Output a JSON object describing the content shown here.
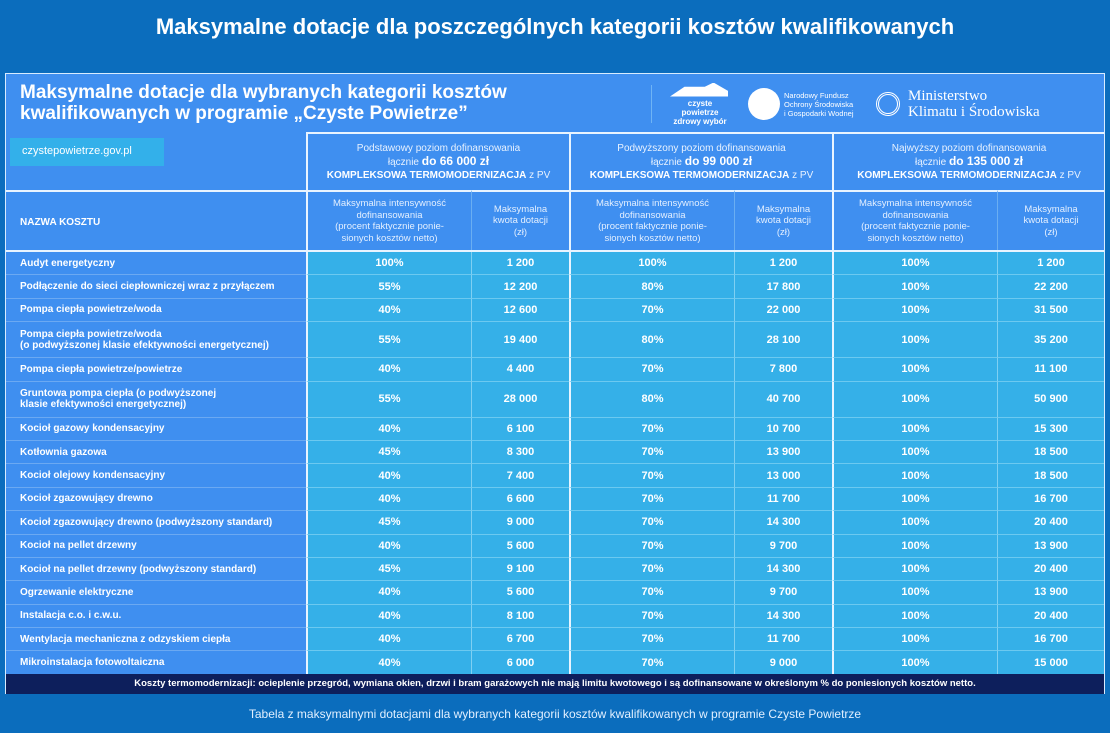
{
  "page_title": "Maksymalne dotacje dla poszczególnych kategorii kosztów kwalifikowanych",
  "card": {
    "title_line1": "Maksymalne dotacje dla wybranych kategorii kosztów",
    "title_line2": "kwalifikowanych w programie „Czyste Powietrze”",
    "website": "czystepowietrze.gov.pl",
    "logos": {
      "cp_line1": "czyste powietrze",
      "cp_line2": "zdrowy wybór",
      "nfos": [
        "Narodowy Fundusz",
        "Ochrony Środowiska",
        "i Gospodarki Wodnej"
      ],
      "ministry_line1": "Ministerstwo",
      "ministry_line2": "Klimatu i Środowiska"
    }
  },
  "groups": [
    {
      "level": "Podstawowy poziom dofinansowania",
      "prefix": "łącznie",
      "amount": "do  66 000 zł",
      "scope": "KOMPLEKSOWA TERMOMODERNIZACJA",
      "suffix": "z PV"
    },
    {
      "level": "Podwyższony poziom dofinansowania",
      "prefix": "łącznie",
      "amount": "do 99 000 zł",
      "scope": "KOMPLEKSOWA TERMOMODERNIZACJA",
      "suffix": "z PV"
    },
    {
      "level": "Najwyższy poziom dofinansowania",
      "prefix": "łącznie",
      "amount": "do 135 000 zł",
      "scope": "KOMPLEKSOWA TERMOMODERNIZACJA",
      "suffix": "z PV"
    }
  ],
  "headers": {
    "name": "NAZWA KOSZTU",
    "intensity": [
      "Maksymalna intensywność",
      "dofinansowania",
      "(procent faktycznie ponie-",
      "sionych kosztów netto)"
    ],
    "amount": [
      "Maksymalna",
      "kwota dotacji",
      "(zł)"
    ]
  },
  "rows": [
    {
      "name": [
        "Audyt energetyczny"
      ],
      "v": [
        "100%",
        "1 200",
        "100%",
        "1 200",
        "100%",
        "1 200"
      ]
    },
    {
      "name": [
        "Podłączenie do sieci ciepłowniczej wraz z przyłączem"
      ],
      "v": [
        "55%",
        "12 200",
        "80%",
        "17 800",
        "100%",
        "22 200"
      ]
    },
    {
      "name": [
        "Pompa ciepła powietrze/woda"
      ],
      "v": [
        "40%",
        "12 600",
        "70%",
        "22 000",
        "100%",
        "31 500"
      ]
    },
    {
      "name": [
        "Pompa ciepła powietrze/woda",
        "(o podwyższonej klasie efektywności energetycznej)"
      ],
      "v": [
        "55%",
        "19 400",
        "80%",
        "28 100",
        "100%",
        "35 200"
      ]
    },
    {
      "name": [
        "Pompa ciepła powietrze/powietrze"
      ],
      "v": [
        "40%",
        "4 400",
        "70%",
        "7 800",
        "100%",
        "11 100"
      ]
    },
    {
      "name": [
        "Gruntowa pompa ciepła (o podwyższonej",
        "klasie efektywności energetycznej)"
      ],
      "v": [
        "55%",
        "28 000",
        "80%",
        "40 700",
        "100%",
        "50 900"
      ]
    },
    {
      "name": [
        "Kocioł gazowy kondensacyjny"
      ],
      "v": [
        "40%",
        "6 100",
        "70%",
        "10 700",
        "100%",
        "15 300"
      ]
    },
    {
      "name": [
        "Kotłownia gazowa"
      ],
      "v": [
        "45%",
        "8 300",
        "70%",
        "13 900",
        "100%",
        "18 500"
      ]
    },
    {
      "name": [
        "Kocioł olejowy kondensacyjny"
      ],
      "v": [
        "40%",
        "7 400",
        "70%",
        "13 000",
        "100%",
        "18 500"
      ]
    },
    {
      "name": [
        "Kocioł zgazowujący drewno"
      ],
      "v": [
        "40%",
        "6 600",
        "70%",
        "11 700",
        "100%",
        "16 700"
      ]
    },
    {
      "name": [
        "Kocioł zgazowujący drewno (podwyższony standard)"
      ],
      "v": [
        "45%",
        "9 000",
        "70%",
        "14 300",
        "100%",
        "20 400"
      ]
    },
    {
      "name": [
        "Kocioł na pellet drzewny"
      ],
      "v": [
        "40%",
        "5 600",
        "70%",
        "9 700",
        "100%",
        "13 900"
      ]
    },
    {
      "name": [
        "Kocioł na pellet drzewny (podwyższony standard)"
      ],
      "v": [
        "45%",
        "9 100",
        "70%",
        "14 300",
        "100%",
        "20 400"
      ]
    },
    {
      "name": [
        "Ogrzewanie elektryczne"
      ],
      "v": [
        "40%",
        "5 600",
        "70%",
        "9 700",
        "100%",
        "13 900"
      ]
    },
    {
      "name": [
        "Instalacja c.o. i c.w.u."
      ],
      "v": [
        "40%",
        "8 100",
        "70%",
        "14 300",
        "100%",
        "20 400"
      ]
    },
    {
      "name": [
        "Wentylacja mechaniczna z odzyskiem ciepła"
      ],
      "v": [
        "40%",
        "6 700",
        "70%",
        "11 700",
        "100%",
        "16 700"
      ]
    },
    {
      "name": [
        "Mikroinstalacja fotowoltaiczna"
      ],
      "v": [
        "40%",
        "6 000",
        "70%",
        "9 000",
        "100%",
        "15 000"
      ]
    }
  ],
  "footnote": "Koszty  termomodernizacji: ocieplenie przegród, wymiana okien, drzwi i bram garażowych nie mają limitu kwotowego i są dofinansowane w określonym % do poniesionych kosztów netto.",
  "caption": "Tabela z maksymalnymi dotacjami dla wybranych kategorii kosztów kwalifikowanych w programie Czyste Powietrze",
  "colors": {
    "background": "#0b6dbd",
    "header_blue": "#3f8ff0",
    "cell_cyan": "#35b0e8",
    "footer_navy": "#0d1f5c"
  }
}
